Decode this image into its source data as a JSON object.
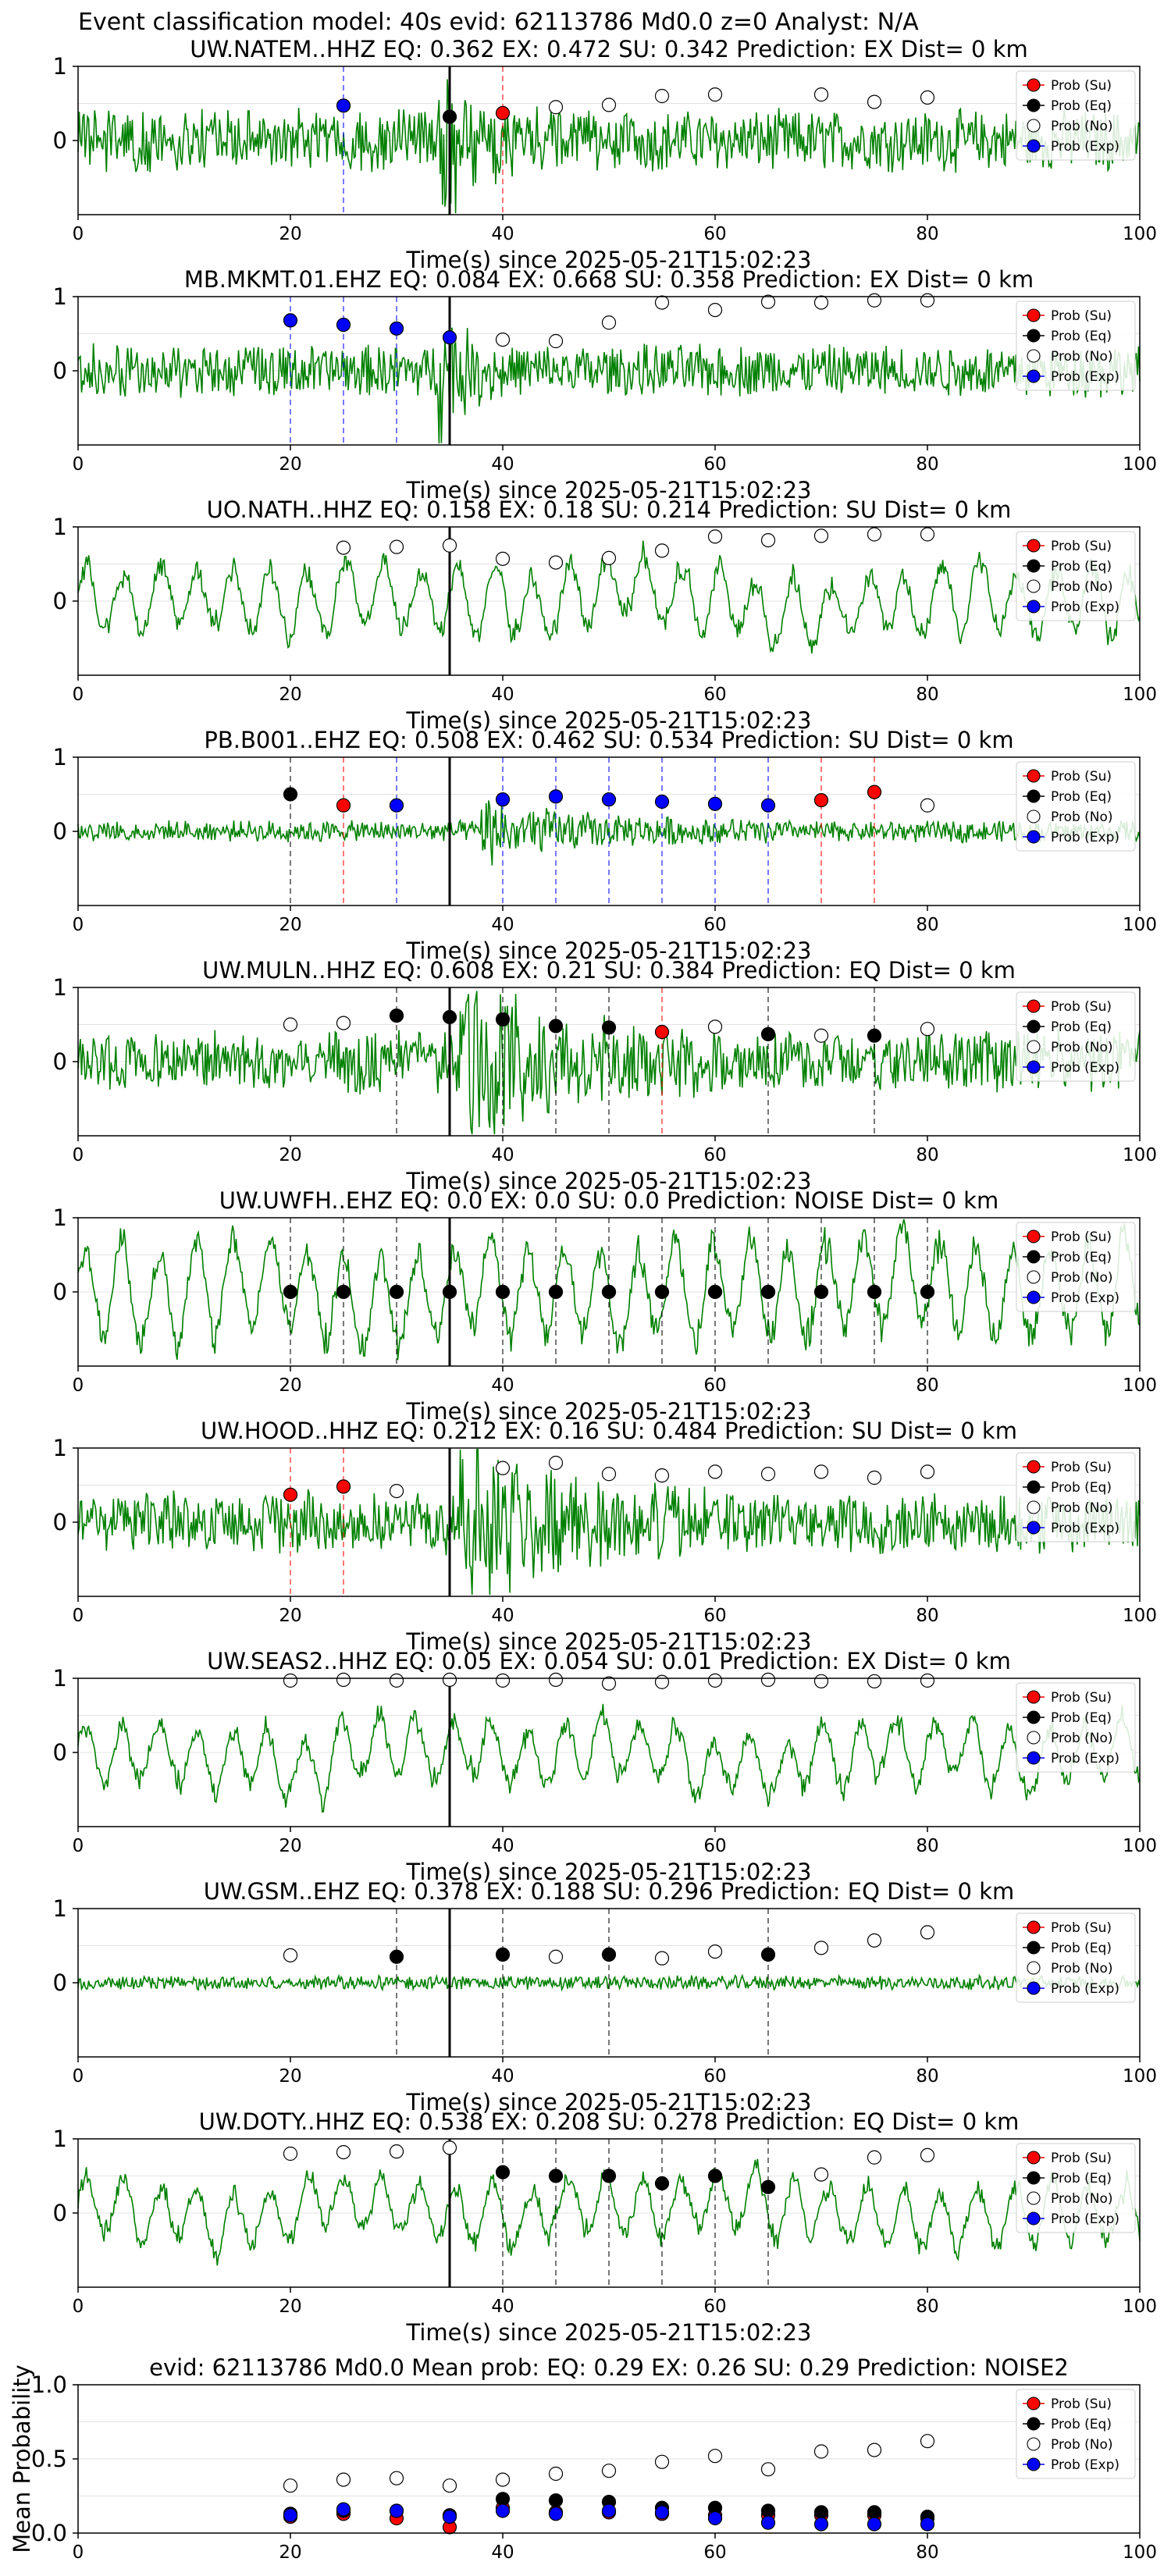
{
  "suptitle": "Event classification model: 40s evid: 62113786 Md0.0 z=0 Analyst: N/A",
  "colors": {
    "waveform": "#008000",
    "su": "#ff0000",
    "eq": "#000000",
    "noise": "#ffffff",
    "exp": "#0000ff",
    "pick_line": "#000000"
  },
  "legend_labels": [
    "Prob (Su)",
    "Prob (Eq)",
    "Prob (No)",
    "Prob (Exp)"
  ],
  "chart_data": [
    {
      "type": "line",
      "title": "UW.NATEM..HHZ   EQ: 0.362  EX: 0.472  SU: 0.342   Prediction: EX    Dist= 0 km",
      "xlabel": "Time(s) since 2025-05-21T15:02:23",
      "xlim": [
        0,
        100
      ],
      "ylim": [
        -1,
        1
      ],
      "xticks": [
        0,
        20,
        40,
        60,
        80,
        100
      ],
      "yticks": [
        0,
        1
      ],
      "pick_time": 35,
      "waveform": {
        "style": "noisy",
        "seed": 1,
        "burst": [
          34,
          44
        ],
        "amp": 0.35
      },
      "markers": [
        {
          "x": 25,
          "y": 0.47,
          "cls": "exp"
        },
        {
          "x": 35,
          "y": 0.32,
          "cls": "eq"
        },
        {
          "x": 40,
          "y": 0.37,
          "cls": "su"
        },
        {
          "x": 45,
          "y": 0.45,
          "cls": "noise"
        },
        {
          "x": 50,
          "y": 0.48,
          "cls": "noise"
        },
        {
          "x": 55,
          "y": 0.6,
          "cls": "noise"
        },
        {
          "x": 60,
          "y": 0.62,
          "cls": "noise"
        },
        {
          "x": 70,
          "y": 0.62,
          "cls": "noise"
        },
        {
          "x": 75,
          "y": 0.52,
          "cls": "noise"
        },
        {
          "x": 80,
          "y": 0.58,
          "cls": "noise"
        }
      ]
    },
    {
      "type": "line",
      "title": "MB.MKMT.01.EHZ   EQ: 0.084  EX: 0.668  SU: 0.358   Prediction: EX    Dist= 0 km",
      "xlabel": "Time(s) since 2025-05-21T15:02:23",
      "xlim": [
        0,
        100
      ],
      "ylim": [
        -1,
        1
      ],
      "xticks": [
        0,
        20,
        40,
        60,
        80,
        100
      ],
      "yticks": [
        0,
        1
      ],
      "pick_time": 35,
      "waveform": {
        "style": "noisy",
        "seed": 2,
        "burst": [
          34,
          40
        ],
        "amp": 0.3
      },
      "markers": [
        {
          "x": 20,
          "y": 0.68,
          "cls": "exp"
        },
        {
          "x": 25,
          "y": 0.62,
          "cls": "exp"
        },
        {
          "x": 30,
          "y": 0.57,
          "cls": "exp"
        },
        {
          "x": 35,
          "y": 0.45,
          "cls": "exp"
        },
        {
          "x": 40,
          "y": 0.42,
          "cls": "noise"
        },
        {
          "x": 45,
          "y": 0.4,
          "cls": "noise"
        },
        {
          "x": 50,
          "y": 0.65,
          "cls": "noise"
        },
        {
          "x": 55,
          "y": 0.92,
          "cls": "noise"
        },
        {
          "x": 60,
          "y": 0.82,
          "cls": "noise"
        },
        {
          "x": 65,
          "y": 0.93,
          "cls": "noise"
        },
        {
          "x": 70,
          "y": 0.92,
          "cls": "noise"
        },
        {
          "x": 75,
          "y": 0.95,
          "cls": "noise"
        },
        {
          "x": 80,
          "y": 0.95,
          "cls": "noise"
        }
      ]
    },
    {
      "type": "line",
      "title": "UO.NATH..HHZ   EQ: 0.158  EX: 0.18  SU: 0.214   Prediction: SU    Dist= 0 km",
      "xlabel": "Time(s) since 2025-05-21T15:02:23",
      "xlim": [
        0,
        100
      ],
      "ylim": [
        -1,
        1
      ],
      "xticks": [
        0,
        20,
        40,
        60,
        80,
        100
      ],
      "yticks": [
        0,
        1
      ],
      "pick_time": 35,
      "waveform": {
        "style": "wave",
        "seed": 3,
        "burst": null,
        "amp": 0.5
      },
      "markers": [
        {
          "x": 25,
          "y": 0.72,
          "cls": "noise"
        },
        {
          "x": 30,
          "y": 0.73,
          "cls": "noise"
        },
        {
          "x": 35,
          "y": 0.75,
          "cls": "noise"
        },
        {
          "x": 40,
          "y": 0.57,
          "cls": "noise"
        },
        {
          "x": 45,
          "y": 0.52,
          "cls": "noise"
        },
        {
          "x": 50,
          "y": 0.58,
          "cls": "noise"
        },
        {
          "x": 55,
          "y": 0.68,
          "cls": "noise"
        },
        {
          "x": 60,
          "y": 0.87,
          "cls": "noise"
        },
        {
          "x": 65,
          "y": 0.82,
          "cls": "noise"
        },
        {
          "x": 70,
          "y": 0.88,
          "cls": "noise"
        },
        {
          "x": 75,
          "y": 0.9,
          "cls": "noise"
        },
        {
          "x": 80,
          "y": 0.9,
          "cls": "noise"
        }
      ]
    },
    {
      "type": "line",
      "title": "PB.B001..EHZ   EQ: 0.508  EX: 0.462  SU: 0.534   Prediction: SU    Dist= 0 km",
      "xlabel": "Time(s) since 2025-05-21T15:02:23",
      "xlim": [
        0,
        100
      ],
      "ylim": [
        -1,
        1
      ],
      "xticks": [
        0,
        20,
        40,
        60,
        80,
        100
      ],
      "yticks": [
        0,
        1
      ],
      "pick_time": 35,
      "waveform": {
        "style": "noisy",
        "seed": 4,
        "burst": [
          38,
          68
        ],
        "amp": 0.12
      },
      "markers": [
        {
          "x": 20,
          "y": 0.5,
          "cls": "eq"
        },
        {
          "x": 25,
          "y": 0.35,
          "cls": "su"
        },
        {
          "x": 30,
          "y": 0.35,
          "cls": "exp"
        },
        {
          "x": 40,
          "y": 0.43,
          "cls": "exp"
        },
        {
          "x": 45,
          "y": 0.47,
          "cls": "exp"
        },
        {
          "x": 50,
          "y": 0.43,
          "cls": "exp"
        },
        {
          "x": 55,
          "y": 0.4,
          "cls": "exp"
        },
        {
          "x": 60,
          "y": 0.37,
          "cls": "exp"
        },
        {
          "x": 65,
          "y": 0.35,
          "cls": "exp"
        },
        {
          "x": 70,
          "y": 0.42,
          "cls": "su"
        },
        {
          "x": 75,
          "y": 0.53,
          "cls": "su"
        },
        {
          "x": 80,
          "y": 0.35,
          "cls": "noise"
        }
      ]
    },
    {
      "type": "line",
      "title": "UW.MULN..HHZ   EQ: 0.608  EX: 0.21  SU: 0.384   Prediction: EQ    Dist= 0 km",
      "xlabel": "Time(s) since 2025-05-21T15:02:23",
      "xlim": [
        0,
        100
      ],
      "ylim": [
        -1,
        1
      ],
      "xticks": [
        0,
        20,
        40,
        60,
        80,
        100
      ],
      "yticks": [
        0,
        1
      ],
      "pick_time": 35,
      "waveform": {
        "style": "noisy",
        "seed": 5,
        "burst": [
          36,
          60
        ],
        "amp": 0.35
      },
      "markers": [
        {
          "x": 20,
          "y": 0.5,
          "cls": "noise"
        },
        {
          "x": 25,
          "y": 0.52,
          "cls": "noise"
        },
        {
          "x": 30,
          "y": 0.62,
          "cls": "eq"
        },
        {
          "x": 35,
          "y": 0.6,
          "cls": "eq"
        },
        {
          "x": 40,
          "y": 0.57,
          "cls": "eq"
        },
        {
          "x": 45,
          "y": 0.48,
          "cls": "eq"
        },
        {
          "x": 50,
          "y": 0.46,
          "cls": "eq"
        },
        {
          "x": 55,
          "y": 0.4,
          "cls": "su"
        },
        {
          "x": 60,
          "y": 0.47,
          "cls": "noise"
        },
        {
          "x": 65,
          "y": 0.37,
          "cls": "eq"
        },
        {
          "x": 70,
          "y": 0.35,
          "cls": "noise"
        },
        {
          "x": 75,
          "y": 0.35,
          "cls": "eq"
        },
        {
          "x": 80,
          "y": 0.44,
          "cls": "noise"
        }
      ]
    },
    {
      "type": "line",
      "title": "UW.UWFH..EHZ   EQ: 0.0  EX: 0.0  SU: 0.0   Prediction: NOISE    Dist= 0 km",
      "xlabel": "Time(s) since 2025-05-21T15:02:23",
      "xlim": [
        0,
        100
      ],
      "ylim": [
        -1,
        1
      ],
      "xticks": [
        0,
        20,
        40,
        60,
        80,
        100
      ],
      "yticks": [
        0,
        1
      ],
      "pick_time": 35,
      "waveform": {
        "style": "wave",
        "seed": 6,
        "burst": null,
        "amp": 0.7
      },
      "markers": [
        {
          "x": 20,
          "y": 0.0,
          "cls": "eq"
        },
        {
          "x": 25,
          "y": 0.0,
          "cls": "eq"
        },
        {
          "x": 30,
          "y": 0.0,
          "cls": "eq"
        },
        {
          "x": 35,
          "y": 0.0,
          "cls": "eq"
        },
        {
          "x": 40,
          "y": 0.0,
          "cls": "eq"
        },
        {
          "x": 45,
          "y": 0.0,
          "cls": "eq"
        },
        {
          "x": 50,
          "y": 0.0,
          "cls": "eq"
        },
        {
          "x": 55,
          "y": 0.0,
          "cls": "eq"
        },
        {
          "x": 60,
          "y": 0.0,
          "cls": "eq"
        },
        {
          "x": 65,
          "y": 0.0,
          "cls": "eq"
        },
        {
          "x": 70,
          "y": 0.0,
          "cls": "eq"
        },
        {
          "x": 75,
          "y": 0.0,
          "cls": "eq"
        },
        {
          "x": 80,
          "y": 0.0,
          "cls": "eq"
        }
      ]
    },
    {
      "type": "line",
      "title": "UW.HOOD..HHZ   EQ: 0.212  EX: 0.16  SU: 0.484   Prediction: SU    Dist= 0 km",
      "xlabel": "Time(s) since 2025-05-21T15:02:23",
      "xlim": [
        0,
        100
      ],
      "ylim": [
        -1,
        1
      ],
      "xticks": [
        0,
        20,
        40,
        60,
        80,
        100
      ],
      "yticks": [
        0,
        1
      ],
      "pick_time": 35,
      "waveform": {
        "style": "noisy",
        "seed": 7,
        "burst": [
          36,
          60
        ],
        "amp": 0.35
      },
      "markers": [
        {
          "x": 20,
          "y": 0.37,
          "cls": "su"
        },
        {
          "x": 25,
          "y": 0.48,
          "cls": "su"
        },
        {
          "x": 30,
          "y": 0.42,
          "cls": "noise"
        },
        {
          "x": 40,
          "y": 0.73,
          "cls": "noise"
        },
        {
          "x": 45,
          "y": 0.8,
          "cls": "noise"
        },
        {
          "x": 50,
          "y": 0.65,
          "cls": "noise"
        },
        {
          "x": 55,
          "y": 0.63,
          "cls": "noise"
        },
        {
          "x": 60,
          "y": 0.68,
          "cls": "noise"
        },
        {
          "x": 65,
          "y": 0.65,
          "cls": "noise"
        },
        {
          "x": 70,
          "y": 0.68,
          "cls": "noise"
        },
        {
          "x": 75,
          "y": 0.6,
          "cls": "noise"
        },
        {
          "x": 80,
          "y": 0.68,
          "cls": "noise"
        }
      ]
    },
    {
      "type": "line",
      "title": "UW.SEAS2..HHZ   EQ: 0.05  EX: 0.054  SU: 0.01   Prediction: EX    Dist= 0 km",
      "xlabel": "Time(s) since 2025-05-21T15:02:23",
      "xlim": [
        0,
        100
      ],
      "ylim": [
        -1,
        1
      ],
      "xticks": [
        0,
        20,
        40,
        60,
        80,
        100
      ],
      "yticks": [
        0,
        1
      ],
      "pick_time": 35,
      "waveform": {
        "style": "wave",
        "seed": 8,
        "burst": null,
        "amp": 0.45
      },
      "markers": [
        {
          "x": 20,
          "y": 0.97,
          "cls": "noise"
        },
        {
          "x": 25,
          "y": 0.98,
          "cls": "noise"
        },
        {
          "x": 30,
          "y": 0.97,
          "cls": "noise"
        },
        {
          "x": 35,
          "y": 0.98,
          "cls": "noise"
        },
        {
          "x": 40,
          "y": 0.97,
          "cls": "noise"
        },
        {
          "x": 45,
          "y": 0.98,
          "cls": "noise"
        },
        {
          "x": 50,
          "y": 0.93,
          "cls": "noise"
        },
        {
          "x": 55,
          "y": 0.95,
          "cls": "noise"
        },
        {
          "x": 60,
          "y": 0.97,
          "cls": "noise"
        },
        {
          "x": 65,
          "y": 0.98,
          "cls": "noise"
        },
        {
          "x": 70,
          "y": 0.96,
          "cls": "noise"
        },
        {
          "x": 75,
          "y": 0.96,
          "cls": "noise"
        },
        {
          "x": 80,
          "y": 0.97,
          "cls": "noise"
        }
      ]
    },
    {
      "type": "line",
      "title": "UW.GSM..EHZ   EQ: 0.378  EX: 0.188  SU: 0.296   Prediction: EQ    Dist= 0 km",
      "xlabel": "Time(s) since 2025-05-21T15:02:23",
      "xlim": [
        0,
        100
      ],
      "ylim": [
        -1,
        1
      ],
      "xticks": [
        0,
        20,
        40,
        60,
        80,
        100
      ],
      "yticks": [
        0,
        1
      ],
      "pick_time": 35,
      "waveform": {
        "style": "noisy",
        "seed": 9,
        "burst": null,
        "amp": 0.08
      },
      "markers": [
        {
          "x": 20,
          "y": 0.37,
          "cls": "noise"
        },
        {
          "x": 30,
          "y": 0.35,
          "cls": "eq"
        },
        {
          "x": 40,
          "y": 0.38,
          "cls": "eq"
        },
        {
          "x": 45,
          "y": 0.35,
          "cls": "noise"
        },
        {
          "x": 50,
          "y": 0.38,
          "cls": "eq"
        },
        {
          "x": 55,
          "y": 0.33,
          "cls": "noise"
        },
        {
          "x": 60,
          "y": 0.42,
          "cls": "noise"
        },
        {
          "x": 65,
          "y": 0.38,
          "cls": "eq"
        },
        {
          "x": 70,
          "y": 0.47,
          "cls": "noise"
        },
        {
          "x": 75,
          "y": 0.57,
          "cls": "noise"
        },
        {
          "x": 80,
          "y": 0.68,
          "cls": "noise"
        }
      ]
    },
    {
      "type": "line",
      "title": "UW.DOTY..HHZ   EQ: 0.538  EX: 0.208  SU: 0.278   Prediction: EQ    Dist= 0 km",
      "xlabel": "Time(s) since 2025-05-21T15:02:23",
      "xlim": [
        0,
        100
      ],
      "ylim": [
        -1,
        1
      ],
      "xticks": [
        0,
        20,
        40,
        60,
        80,
        100
      ],
      "yticks": [
        0,
        1
      ],
      "pick_time": 35,
      "waveform": {
        "style": "wave",
        "seed": 10,
        "burst": null,
        "amp": 0.45
      },
      "markers": [
        {
          "x": 20,
          "y": 0.8,
          "cls": "noise"
        },
        {
          "x": 25,
          "y": 0.82,
          "cls": "noise"
        },
        {
          "x": 30,
          "y": 0.83,
          "cls": "noise"
        },
        {
          "x": 35,
          "y": 0.88,
          "cls": "noise"
        },
        {
          "x": 40,
          "y": 0.55,
          "cls": "eq"
        },
        {
          "x": 45,
          "y": 0.5,
          "cls": "eq"
        },
        {
          "x": 50,
          "y": 0.5,
          "cls": "eq"
        },
        {
          "x": 55,
          "y": 0.4,
          "cls": "eq"
        },
        {
          "x": 60,
          "y": 0.5,
          "cls": "eq"
        },
        {
          "x": 65,
          "y": 0.35,
          "cls": "eq"
        },
        {
          "x": 70,
          "y": 0.52,
          "cls": "noise"
        },
        {
          "x": 75,
          "y": 0.75,
          "cls": "noise"
        },
        {
          "x": 80,
          "y": 0.78,
          "cls": "noise"
        }
      ]
    },
    {
      "type": "scatter",
      "title": "evid: 62113786  Md0.0   Mean prob:   EQ: 0.29  EX: 0.26  SU: 0.29   Prediction: NOISE2",
      "xlabel": "",
      "ylabel": "Mean Probability",
      "xlim": [
        0,
        100
      ],
      "ylim": [
        0,
        1
      ],
      "xticks": [
        0,
        20,
        40,
        60,
        80,
        100
      ],
      "yticks": [
        0.0,
        0.5,
        1.0
      ],
      "ytick_labels": [
        "0.0",
        "0.5",
        "1.0"
      ],
      "series": [
        {
          "name": "Prob (Su)",
          "cls": "su",
          "x": [
            20,
            25,
            30,
            35,
            40,
            45,
            50,
            55,
            60,
            65,
            70,
            75,
            80
          ],
          "values": [
            0.11,
            0.13,
            0.1,
            0.04,
            0.17,
            0.14,
            0.14,
            0.13,
            0.12,
            0.12,
            0.12,
            0.12,
            0.1
          ]
        },
        {
          "name": "Prob (Eq)",
          "cls": "eq",
          "x": [
            20,
            25,
            30,
            35,
            40,
            45,
            50,
            55,
            60,
            65,
            70,
            75,
            80
          ],
          "values": [
            0.13,
            0.15,
            0.15,
            0.12,
            0.23,
            0.22,
            0.21,
            0.17,
            0.17,
            0.15,
            0.14,
            0.14,
            0.11
          ]
        },
        {
          "name": "Prob (No)",
          "cls": "noise",
          "x": [
            20,
            25,
            30,
            35,
            40,
            45,
            50,
            55,
            60,
            65,
            70,
            75,
            80
          ],
          "values": [
            0.32,
            0.36,
            0.37,
            0.32,
            0.36,
            0.4,
            0.42,
            0.48,
            0.52,
            0.43,
            0.55,
            0.56,
            0.62
          ]
        },
        {
          "name": "Prob (Exp)",
          "cls": "exp",
          "x": [
            20,
            25,
            30,
            35,
            40,
            45,
            50,
            55,
            60,
            65,
            70,
            75,
            80
          ],
          "values": [
            0.12,
            0.16,
            0.15,
            0.11,
            0.15,
            0.13,
            0.15,
            0.14,
            0.1,
            0.07,
            0.06,
            0.06,
            0.06
          ]
        }
      ]
    }
  ]
}
